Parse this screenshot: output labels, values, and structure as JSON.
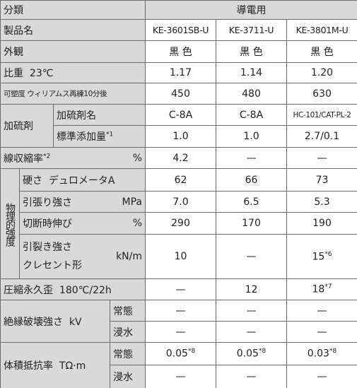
{
  "table": {
    "header": [
      "分類",
      "導電用"
    ],
    "product": {
      "label": "製品名",
      "values": [
        "KE-3601SB-U",
        "KE-3711-U",
        "KE-3801M-U"
      ]
    },
    "appearance": {
      "label": "外観",
      "values": [
        "黒 色",
        "黒 色",
        "黒 色"
      ]
    },
    "specific_gravity": {
      "label": "比重",
      "condition": "23℃",
      "values": [
        "1.17",
        "1.14",
        "1.20"
      ]
    },
    "plasticity": {
      "label": "可塑度",
      "condition": "ウィリアムス再練10分後",
      "values": [
        "450",
        "480",
        "630"
      ]
    },
    "vulcanizing": {
      "label": "加硫剤",
      "agent": {
        "label": "加硫剤名",
        "values": [
          "C-8A",
          "C-8A",
          "HC-101/CAT-PL-2"
        ]
      },
      "amount": {
        "label": "標準添加量",
        "note": "*1",
        "values": [
          "1.0",
          "1.0",
          "2.7/0.1"
        ]
      }
    },
    "shrinkage": {
      "label": "線収縮率",
      "note": "*2",
      "unit": "%",
      "values": [
        "4.2",
        "—",
        "—"
      ]
    },
    "physical": {
      "label": "物理的強度",
      "hardness": {
        "label": "硬さ",
        "condition": "デュロメータA",
        "values": [
          "62",
          "66",
          "73"
        ]
      },
      "tensile": {
        "label": "引張り強さ",
        "unit": "MPa",
        "values": [
          "7.0",
          "6.5",
          "5.3"
        ]
      },
      "elongation": {
        "label": "切断時伸び",
        "unit": "%",
        "values": [
          "290",
          "170",
          "190"
        ]
      },
      "tear": {
        "label": "引裂き強さ",
        "condition": "クレセント形",
        "unit": "kN/m",
        "values": [
          "10",
          "—",
          {
            "text": "15",
            "note": "*6"
          }
        ]
      }
    },
    "compression": {
      "label": "圧縮永久歪",
      "condition": "180℃/22h",
      "values": [
        "—",
        "12",
        {
          "text": "18",
          "note": "*7"
        }
      ]
    },
    "insulation": {
      "label": "絶縁破壊強さ",
      "unit": "kV",
      "normal": {
        "label": "常態",
        "values": [
          "—",
          "—",
          "—"
        ]
      },
      "immersed": {
        "label": "浸水",
        "values": [
          "—",
          "—",
          "—"
        ]
      }
    },
    "resistivity": {
      "label": "体積抵抗率",
      "unit": "TΩ·m",
      "normal": {
        "label": "常態",
        "values": [
          {
            "text": "0.05",
            "note": "*8"
          },
          {
            "text": "0.05",
            "note": "*8"
          },
          {
            "text": "0.03",
            "note": "*8"
          }
        ]
      },
      "immersed": {
        "label": "浸水",
        "values": [
          "—",
          "—",
          "—"
        ]
      }
    }
  }
}
